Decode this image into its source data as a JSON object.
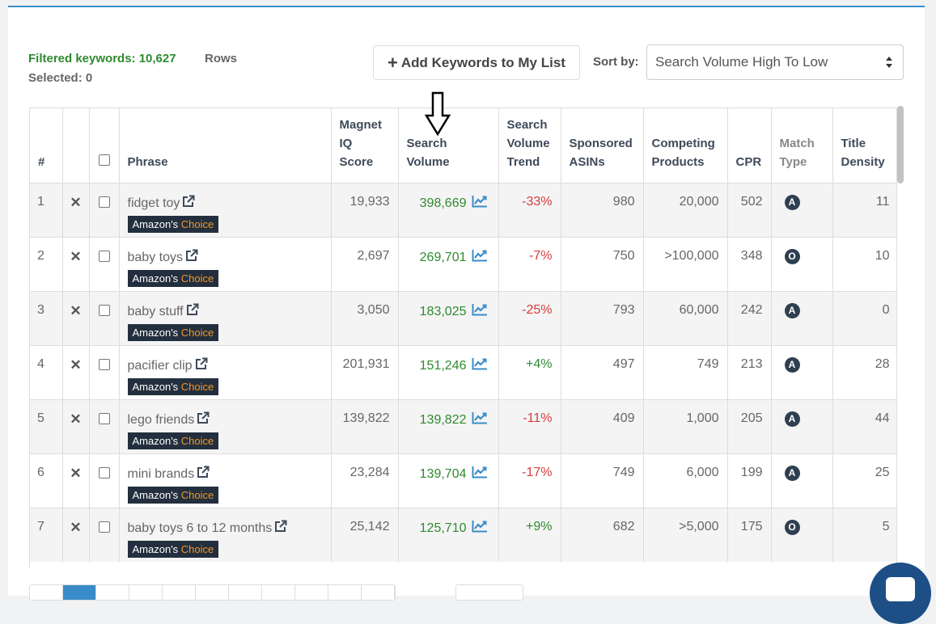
{
  "header": {
    "filtered_label": "Filtered keywords: 10,627",
    "rows_label": "Rows",
    "selected_label": "Selected: 0",
    "add_button_label": "Add Keywords to My List",
    "sort_label": "Sort by:",
    "sort_value": "Search Volume High To Low"
  },
  "columns": {
    "idx": "#",
    "phrase": "Phrase",
    "magnet_l1": "Magnet",
    "magnet_l2": "IQ",
    "magnet_l3": "Score",
    "sv_l1": "Search",
    "sv_l2": "Volume",
    "svt_l1": "Search",
    "svt_l2": "Volume",
    "svt_l3": "Trend",
    "spons_l1": "Sponsored",
    "spons_l2": "ASINs",
    "comp_l1": "Competing",
    "comp_l2": "Products",
    "cpr": "CPR",
    "mt_l1": "Match",
    "mt_l2": "Type",
    "td_l1": "Title",
    "td_l2": "Density"
  },
  "badge": {
    "brand": "Amazon's",
    "choice": "Choice"
  },
  "remove_symbol": "✕",
  "rows": [
    {
      "idx": "1",
      "phrase": "fidget toy",
      "magnet": "19,933",
      "sv": "398,669",
      "trend": "-33%",
      "trend_dir": "neg",
      "spons": "980",
      "comp": "20,000",
      "cpr": "502",
      "match": "A",
      "density": "11"
    },
    {
      "idx": "2",
      "phrase": "baby toys",
      "magnet": "2,697",
      "sv": "269,701",
      "trend": "-7%",
      "trend_dir": "neg",
      "spons": "750",
      "comp": ">100,000",
      "cpr": "348",
      "match": "O",
      "density": "10"
    },
    {
      "idx": "3",
      "phrase": "baby stuff",
      "magnet": "3,050",
      "sv": "183,025",
      "trend": "-25%",
      "trend_dir": "neg",
      "spons": "793",
      "comp": "60,000",
      "cpr": "242",
      "match": "A",
      "density": "0"
    },
    {
      "idx": "4",
      "phrase": "pacifier clip",
      "magnet": "201,931",
      "sv": "151,246",
      "trend": "+4%",
      "trend_dir": "pos",
      "spons": "497",
      "comp": "749",
      "cpr": "213",
      "match": "A",
      "density": "28"
    },
    {
      "idx": "5",
      "phrase": "lego friends",
      "magnet": "139,822",
      "sv": "139,822",
      "trend": "-11%",
      "trend_dir": "neg",
      "spons": "409",
      "comp": "1,000",
      "cpr": "205",
      "match": "A",
      "density": "44"
    },
    {
      "idx": "6",
      "phrase": "mini brands",
      "magnet": "23,284",
      "sv": "139,704",
      "trend": "-17%",
      "trend_dir": "neg",
      "spons": "749",
      "comp": "6,000",
      "cpr": "199",
      "match": "A",
      "density": "25"
    },
    {
      "idx": "7",
      "phrase": "baby toys 6 to 12 months",
      "magnet": "25,142",
      "sv": "125,710",
      "trend": "+9%",
      "trend_dir": "pos",
      "spons": "682",
      "comp": ">5,000",
      "cpr": "175",
      "match": "O",
      "density": "5"
    }
  ],
  "colors": {
    "accent": "#3a8cc9",
    "positive": "#2f8a2f",
    "negative": "#d83a3a",
    "badge_bg": "#232f3e",
    "badge_choice": "#f29727"
  },
  "icons": [
    "plus-icon",
    "caret-updown-icon",
    "external-link-icon",
    "trend-chart-icon",
    "remove-icon",
    "down-arrow-icon",
    "chat-icon"
  ]
}
